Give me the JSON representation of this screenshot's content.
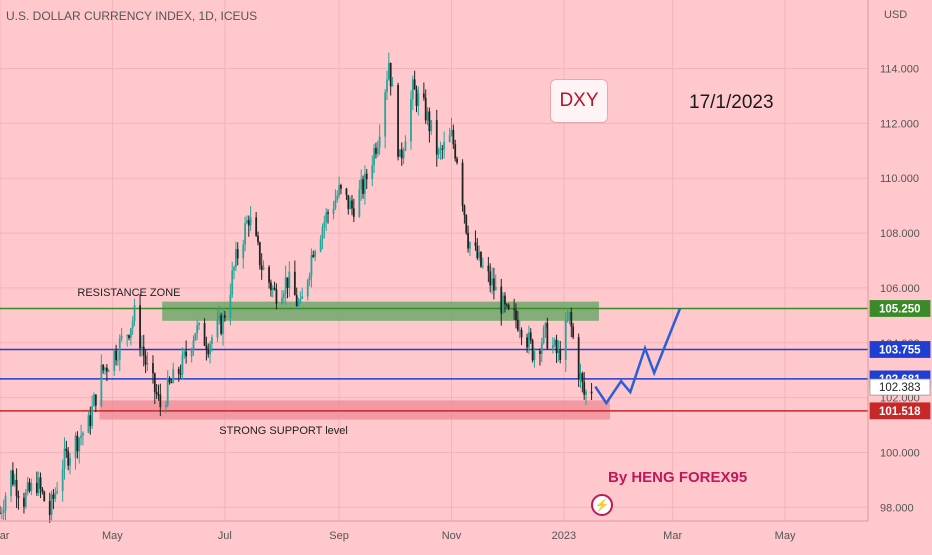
{
  "header": {
    "title": "U.S. DOLLAR CURRENCY INDEX, 1D, ICEUS",
    "currency": "USD"
  },
  "annotations": {
    "dxy_label": "DXY",
    "date": "17/1/2023",
    "author": "By HENG FOREX95",
    "resistance_label": "RESISTANCE ZONE",
    "support_label": "STRONG SUPPORT level"
  },
  "colors": {
    "background": "#ffc8cc",
    "up_candle": "#26a69a",
    "down_candle": "#222222",
    "resistance_zone": "#6ea86a",
    "support_zone": "#ef8a96",
    "green_line": "#3a8a2a",
    "blue_line": "#1e3fd1",
    "red_line": "#c62828",
    "projection": "#2a5fd8"
  },
  "chart_data": {
    "type": "candlestick",
    "title": "U.S. DOLLAR CURRENCY INDEX, 1D, ICEUS",
    "ylabel": "USD",
    "ylim": [
      97.5,
      116.5
    ],
    "xlim": [
      "2022-03-01",
      "2023-06-15"
    ],
    "x_ticks": [
      {
        "label": "Mar",
        "date": "2022-03-01"
      },
      {
        "label": "May",
        "date": "2022-05-01"
      },
      {
        "label": "Jul",
        "date": "2022-07-01"
      },
      {
        "label": "Sep",
        "date": "2022-09-01"
      },
      {
        "label": "Nov",
        "date": "2022-11-01"
      },
      {
        "label": "2023",
        "date": "2023-01-01"
      },
      {
        "label": "Mar",
        "date": "2023-03-01"
      },
      {
        "label": "May",
        "date": "2023-05-01"
      }
    ],
    "y_ticks": [
      "98.000",
      "100.000",
      "102.000",
      "104.000",
      "106.000",
      "108.000",
      "110.000",
      "112.000",
      "114.000"
    ],
    "price_path": [
      [
        "2022-03-01",
        97.8
      ],
      [
        "2022-03-07",
        99.2
      ],
      [
        "2022-03-14",
        98.3
      ],
      [
        "2022-03-21",
        98.9
      ],
      [
        "2022-03-28",
        97.8
      ],
      [
        "2022-04-04",
        99.6
      ],
      [
        "2022-04-11",
        100.4
      ],
      [
        "2022-04-18",
        101.0
      ],
      [
        "2022-04-25",
        102.9
      ],
      [
        "2022-05-02",
        103.6
      ],
      [
        "2022-05-09",
        104.4
      ],
      [
        "2022-05-13",
        105.0
      ],
      [
        "2022-05-20",
        103.0
      ],
      [
        "2022-05-27",
        101.7
      ],
      [
        "2022-06-01",
        102.4
      ],
      [
        "2022-06-08",
        103.2
      ],
      [
        "2022-06-15",
        104.5
      ],
      [
        "2022-06-22",
        104.0
      ],
      [
        "2022-06-30",
        104.8
      ],
      [
        "2022-07-07",
        107.0
      ],
      [
        "2022-07-14",
        108.6
      ],
      [
        "2022-07-21",
        106.8
      ],
      [
        "2022-07-28",
        105.8
      ],
      [
        "2022-08-04",
        106.3
      ],
      [
        "2022-08-11",
        105.2
      ],
      [
        "2022-08-18",
        107.5
      ],
      [
        "2022-08-25",
        108.6
      ],
      [
        "2022-09-01",
        109.5
      ],
      [
        "2022-09-08",
        108.9
      ],
      [
        "2022-09-15",
        109.8
      ],
      [
        "2022-09-22",
        111.5
      ],
      [
        "2022-09-28",
        114.3
      ],
      [
        "2022-10-04",
        110.6
      ],
      [
        "2022-10-11",
        113.2
      ],
      [
        "2022-10-18",
        112.4
      ],
      [
        "2022-10-25",
        110.8
      ],
      [
        "2022-11-01",
        111.5
      ],
      [
        "2022-11-04",
        110.8
      ],
      [
        "2022-11-10",
        107.8
      ],
      [
        "2022-11-17",
        106.8
      ],
      [
        "2022-11-24",
        106.0
      ],
      [
        "2022-12-01",
        105.0
      ],
      [
        "2022-12-08",
        104.8
      ],
      [
        "2022-12-15",
        103.7
      ],
      [
        "2022-12-22",
        104.3
      ],
      [
        "2022-12-29",
        103.5
      ],
      [
        "2023-01-04",
        104.9
      ],
      [
        "2023-01-09",
        103.0
      ],
      [
        "2023-01-12",
        102.1
      ],
      [
        "2023-01-17",
        102.4
      ]
    ],
    "levels": [
      {
        "name": "resistance",
        "value": 105.25,
        "label": "105.250",
        "color": "#3a8a2a",
        "badge_bg": "#3a8a2a"
      },
      {
        "name": "blue_upper",
        "value": 103.755,
        "label": "103.755",
        "color": "#1e3fd1",
        "badge_bg": "#1e3fd1"
      },
      {
        "name": "blue_lower",
        "value": 102.681,
        "label": "102.681",
        "color": "#1e3fd1",
        "badge_bg": "#1e3fd1"
      },
      {
        "name": "current",
        "value": 102.383,
        "label": "102.383",
        "color": "#444444",
        "badge_bg": "#ffffff"
      },
      {
        "name": "support",
        "value": 101.518,
        "label": "101.518",
        "color": "#c62828",
        "badge_bg": "#c62828"
      }
    ],
    "zones": [
      {
        "name": "resistance_zone",
        "y_from": 104.8,
        "y_to": 105.5,
        "x_from": "2022-05-28",
        "x_to": "2023-01-20"
      },
      {
        "name": "support_zone",
        "y_from": 101.2,
        "y_to": 101.9,
        "x_from": "2022-04-24",
        "x_to": "2023-01-26"
      }
    ],
    "projection": [
      [
        "2023-01-18",
        102.4
      ],
      [
        "2023-01-24",
        101.8
      ],
      [
        "2023-02-01",
        102.6
      ],
      [
        "2023-02-06",
        102.2
      ],
      [
        "2023-02-14",
        103.8
      ],
      [
        "2023-02-19",
        102.9
      ],
      [
        "2023-03-05",
        105.25
      ]
    ]
  }
}
